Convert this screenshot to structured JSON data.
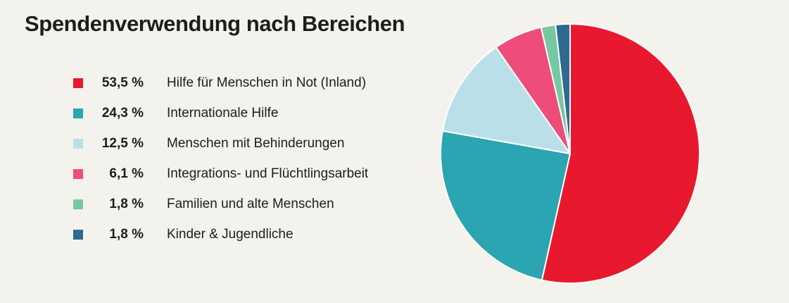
{
  "chart_data": {
    "type": "pie",
    "title": "Spendenverwendung nach Bereichen",
    "value_unit": "%",
    "slices": [
      {
        "label": "Hilfe für Menschen in Not (Inland)",
        "value": 53.5,
        "value_text": "53,5 %",
        "color": "#e8192f"
      },
      {
        "label": "Internationale Hilfe",
        "value": 24.3,
        "value_text": "24,3 %",
        "color": "#2aa5b1"
      },
      {
        "label": "Menschen mit Behinderungen",
        "value": 12.5,
        "value_text": "12,5 %",
        "color": "#b9e0e9"
      },
      {
        "label": "Integrations- und Flüchtlingsarbeit",
        "value": 6.1,
        "value_text": "6,1 %",
        "color": "#ee4c79"
      },
      {
        "label": "Familien und alte Menschen",
        "value": 1.8,
        "value_text": "1,8 %",
        "color": "#77c8a2"
      },
      {
        "label": "Kinder & Jugendliche",
        "value": 1.8,
        "value_text": "1,8 %",
        "color": "#2c6a8f"
      }
    ],
    "legend_position": "left",
    "slice_order": "clockwise from top"
  }
}
